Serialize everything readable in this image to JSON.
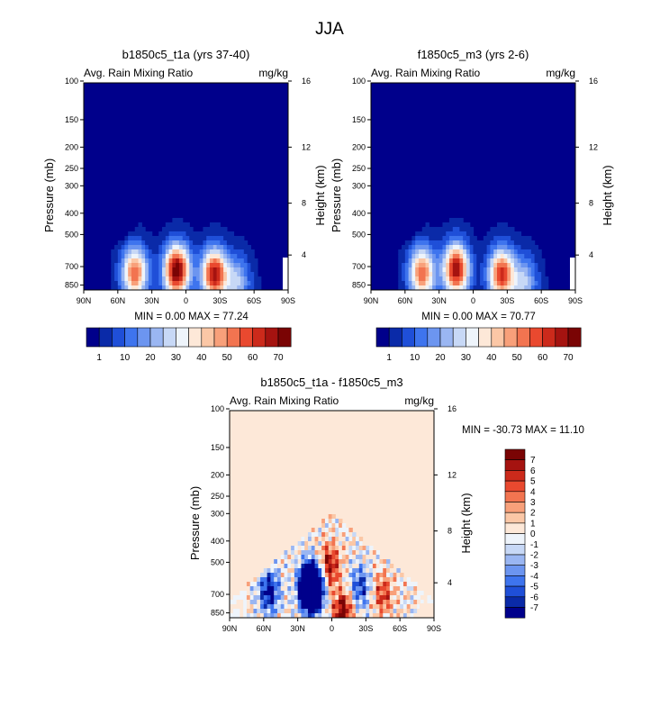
{
  "figure": {
    "title": "JJA"
  },
  "colorbar_top": {
    "labels": [
      "1",
      "10",
      "20",
      "30",
      "40",
      "50",
      "60",
      "70"
    ],
    "colors": [
      "#00008b",
      "#0a2aa8",
      "#1f4fd8",
      "#3e74ee",
      "#6c95f0",
      "#9ab6f2",
      "#c7d8f6",
      "#eef4fb",
      "#fde8d8",
      "#fbc7a6",
      "#f8a07a",
      "#f27450",
      "#e9492f",
      "#cc2a1b",
      "#a51310",
      "#7a0404"
    ]
  },
  "colorbar_diff": {
    "labels": [
      "7",
      "6",
      "5",
      "4",
      "3",
      "2",
      "1",
      "0",
      "-1",
      "-2",
      "-3",
      "-4",
      "-5",
      "-6",
      "-7"
    ],
    "colors": [
      "#7a0404",
      "#a51310",
      "#cc2a1b",
      "#e9492f",
      "#f27450",
      "#f8a07a",
      "#fbc7a6",
      "#fde8d8",
      "#eef4fb",
      "#c7d8f6",
      "#9ab6f2",
      "#6c95f0",
      "#3e74ee",
      "#1f4fd8",
      "#0a2aa8",
      "#00008b"
    ]
  },
  "chart_data": [
    {
      "type": "heatmap",
      "title": "b1850c5_t1a (yrs 37-40)",
      "left_label": "Avg. Rain Mixing Ratio",
      "right_label": "mg/kg",
      "ylabel": "Pressure (mb)",
      "y2label": "Height (km)",
      "x_ticks": [
        "90N",
        "60N",
        "30N",
        "0",
        "30S",
        "60S",
        "90S"
      ],
      "y_ticks": [
        "100",
        "150",
        "200",
        "250",
        "300",
        "400",
        "500",
        "700",
        "850"
      ],
      "y2_ticks": [
        "16",
        "12",
        "8",
        "4"
      ],
      "xlim": [
        90,
        -90
      ],
      "ylim_mb": [
        1000,
        100
      ],
      "log_y": true,
      "stats": "MIN =   0.00   MAX =  77.24",
      "min": 0.0,
      "max": 77.24,
      "features": [
        {
          "lat": 45,
          "p": 750,
          "value": 55
        },
        {
          "lat": 8,
          "p": 730,
          "value": 77
        },
        {
          "lat": -25,
          "p": 760,
          "value": 68
        },
        {
          "lat": -45,
          "p": 820,
          "value": 25
        }
      ]
    },
    {
      "type": "heatmap",
      "title": "f1850c5_m3 (yrs 2-6)",
      "left_label": "Avg. Rain Mixing Ratio",
      "right_label": "mg/kg",
      "ylabel": "Pressure (mb)",
      "y2label": "Height (km)",
      "x_ticks": [
        "90N",
        "60N",
        "30N",
        "0",
        "30S",
        "60S",
        "90S"
      ],
      "y_ticks": [
        "100",
        "150",
        "200",
        "250",
        "300",
        "400",
        "500",
        "700",
        "850"
      ],
      "y2_ticks": [
        "16",
        "12",
        "8",
        "4"
      ],
      "xlim": [
        90,
        -90
      ],
      "ylim_mb": [
        1000,
        100
      ],
      "log_y": true,
      "stats": "MIN =   0.00   MAX =  70.77",
      "min": 0.0,
      "max": 70.77,
      "features": [
        {
          "lat": 45,
          "p": 750,
          "value": 55
        },
        {
          "lat": 15,
          "p": 720,
          "value": 70
        },
        {
          "lat": -25,
          "p": 760,
          "value": 62
        },
        {
          "lat": -45,
          "p": 820,
          "value": 25
        }
      ]
    },
    {
      "type": "heatmap",
      "title": "b1850c5_t1a - f1850c5_m3",
      "left_label": "Avg. Rain Mixing Ratio",
      "right_label": "mg/kg",
      "ylabel": "Pressure (mb)",
      "y2label": "Height (km)",
      "x_ticks": [
        "90N",
        "60N",
        "30N",
        "0",
        "30S",
        "60S",
        "90S"
      ],
      "y_ticks": [
        "100",
        "150",
        "200",
        "250",
        "300",
        "400",
        "500",
        "700",
        "850"
      ],
      "y2_ticks": [
        "16",
        "12",
        "8",
        "4"
      ],
      "xlim": [
        90,
        -90
      ],
      "ylim_mb": [
        1000,
        100
      ],
      "log_y": true,
      "stats": "MIN = -30.73   MAX =  11.10",
      "min": -30.73,
      "max": 11.1,
      "features": [
        {
          "lat": 18,
          "p": 650,
          "value": -30
        },
        {
          "lat": 55,
          "p": 680,
          "value": -8
        },
        {
          "lat": -25,
          "p": 650,
          "value": -6
        },
        {
          "lat": 2,
          "p": 520,
          "value": 7
        },
        {
          "lat": -10,
          "p": 840,
          "value": 8
        },
        {
          "lat": -45,
          "p": 700,
          "value": 5
        }
      ]
    }
  ]
}
